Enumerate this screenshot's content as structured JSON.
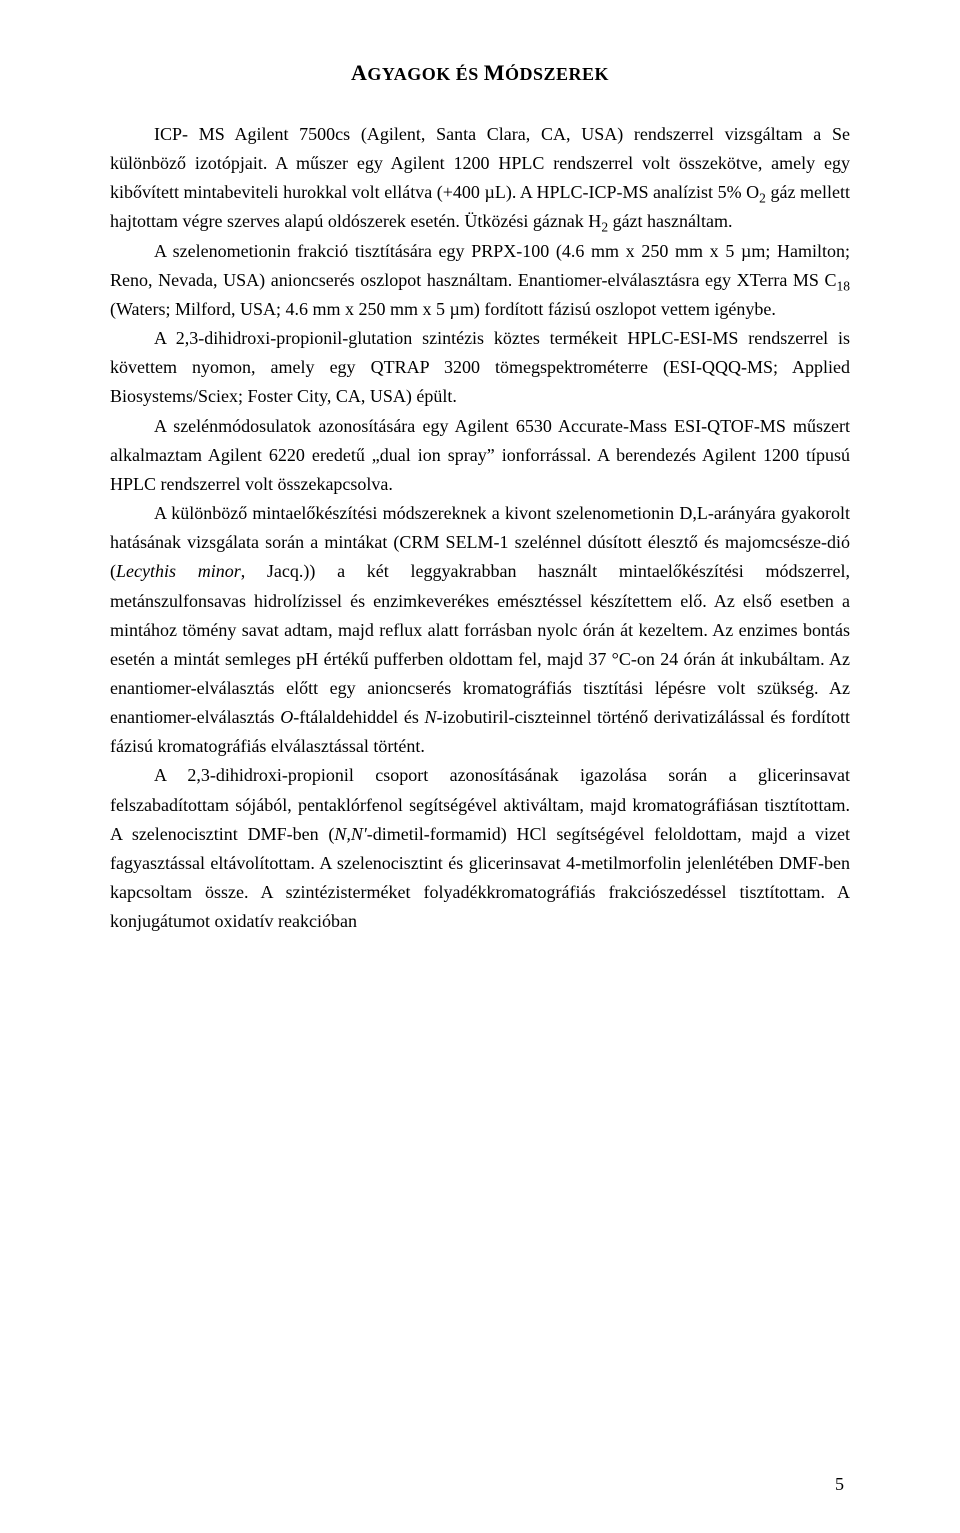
{
  "title_html": "<span class='caps'>A</span><span class='small'>GYAGOK ÉS </span><span class='caps'>M</span><span class='small'>ÓDSZEREK</span>",
  "paragraphs": [
    "ICP- MS Agilent 7500cs (Agilent, Santa Clara, CA, USA) rendszerrel vizsgáltam a Se különböző izotópjait. A műszer egy Agilent 1200 HPLC rendszerrel volt összekötve, amely egy kibővített mintabeviteli hurokkal volt ellátva (+400 µL). A HPLC-ICP-MS analízist 5% O<sub>2</sub> gáz mellett hajtottam végre szerves alapú oldószerek esetén. Ütközési gáznak H<sub>2</sub> gázt használtam.",
    "A szelenometionin frakció tisztítására egy PRPX-100 (4.6 mm x 250 mm x 5 µm; Hamilton; Reno, Nevada, USA) anioncserés oszlopot használtam. Enantiomer-elválasztásra egy XTerra MS C<sub>18</sub> (Waters; Milford, USA; 4.6 mm x 250 mm x 5 µm) fordított fázisú oszlopot vettem igénybe.",
    "A 2,3-dihidroxi-propionil-glutation szintézis köztes termékeit HPLC-ESI-MS rendszerrel is követtem nyomon, amely egy QTRAP 3200 tömegspektrométerre (ESI-QQQ-MS; Applied Biosystems/Sciex; Foster City, CA, USA) épült.",
    "A szelénmódosulatok azonosítására egy Agilent 6530 Accurate-Mass ESI-QTOF-MS műszert alkalmaztam Agilent 6220 eredetű „dual ion spray” ionforrással. A berendezés Agilent 1200 típusú HPLC rendszerrel volt összekapcsolva.",
    "A különböző mintaelőkészítési módszereknek a kivont szelenometionin D,L-arányára gyakorolt hatásának vizsgálata során a mintákat (CRM SELM-1 szelénnel dúsított élesztő és majomcsésze-dió (<i>Lecythis minor</i>, Jacq.)) a két leggyakrabban használt mintaelőkészítési módszerrel, metánszulfonsavas hidrolízissel és enzimkeverékes emésztéssel készítettem elő. Az első esetben a mintához tömény savat adtam, majd reflux alatt forrásban nyolc órán át kezeltem. Az enzimes bontás esetén a mintát semleges pH értékű pufferben oldottam fel, majd 37 °C-on 24 órán át inkubáltam. Az enantiomer-elválasztás előtt egy anioncserés kromatográfiás tisztítási lépésre volt szükség. Az enantiomer-elválasztás <i>O</i>-ftálaldehiddel és <i>N</i>-izobutiril-ciszteinnel történő derivatizálással és fordított fázisú kromatográfiás elválasztással történt.",
    "A 2,3-dihidroxi-propionil csoport azonosításának igazolása során a glicerinsavat felszabadítottam sójából, pentaklórfenol segítségével aktiváltam, majd kromatográfiásan tisztítottam. A szelenocisztint DMF-ben (<i>N,N'</i>-dimetil-formamid) HCl segítségével feloldottam, majd a vizet fagyasztással eltávolítottam. A szelenocisztint és glicerinsavat 4-metilmorfolin jelenlétében DMF-ben kapcsoltam össze. A szintézisterméket folyadékkromatográfiás frakciószedéssel tisztítottam. A konjugátumot oxidatív reakcióban"
  ],
  "page_number": "5"
}
